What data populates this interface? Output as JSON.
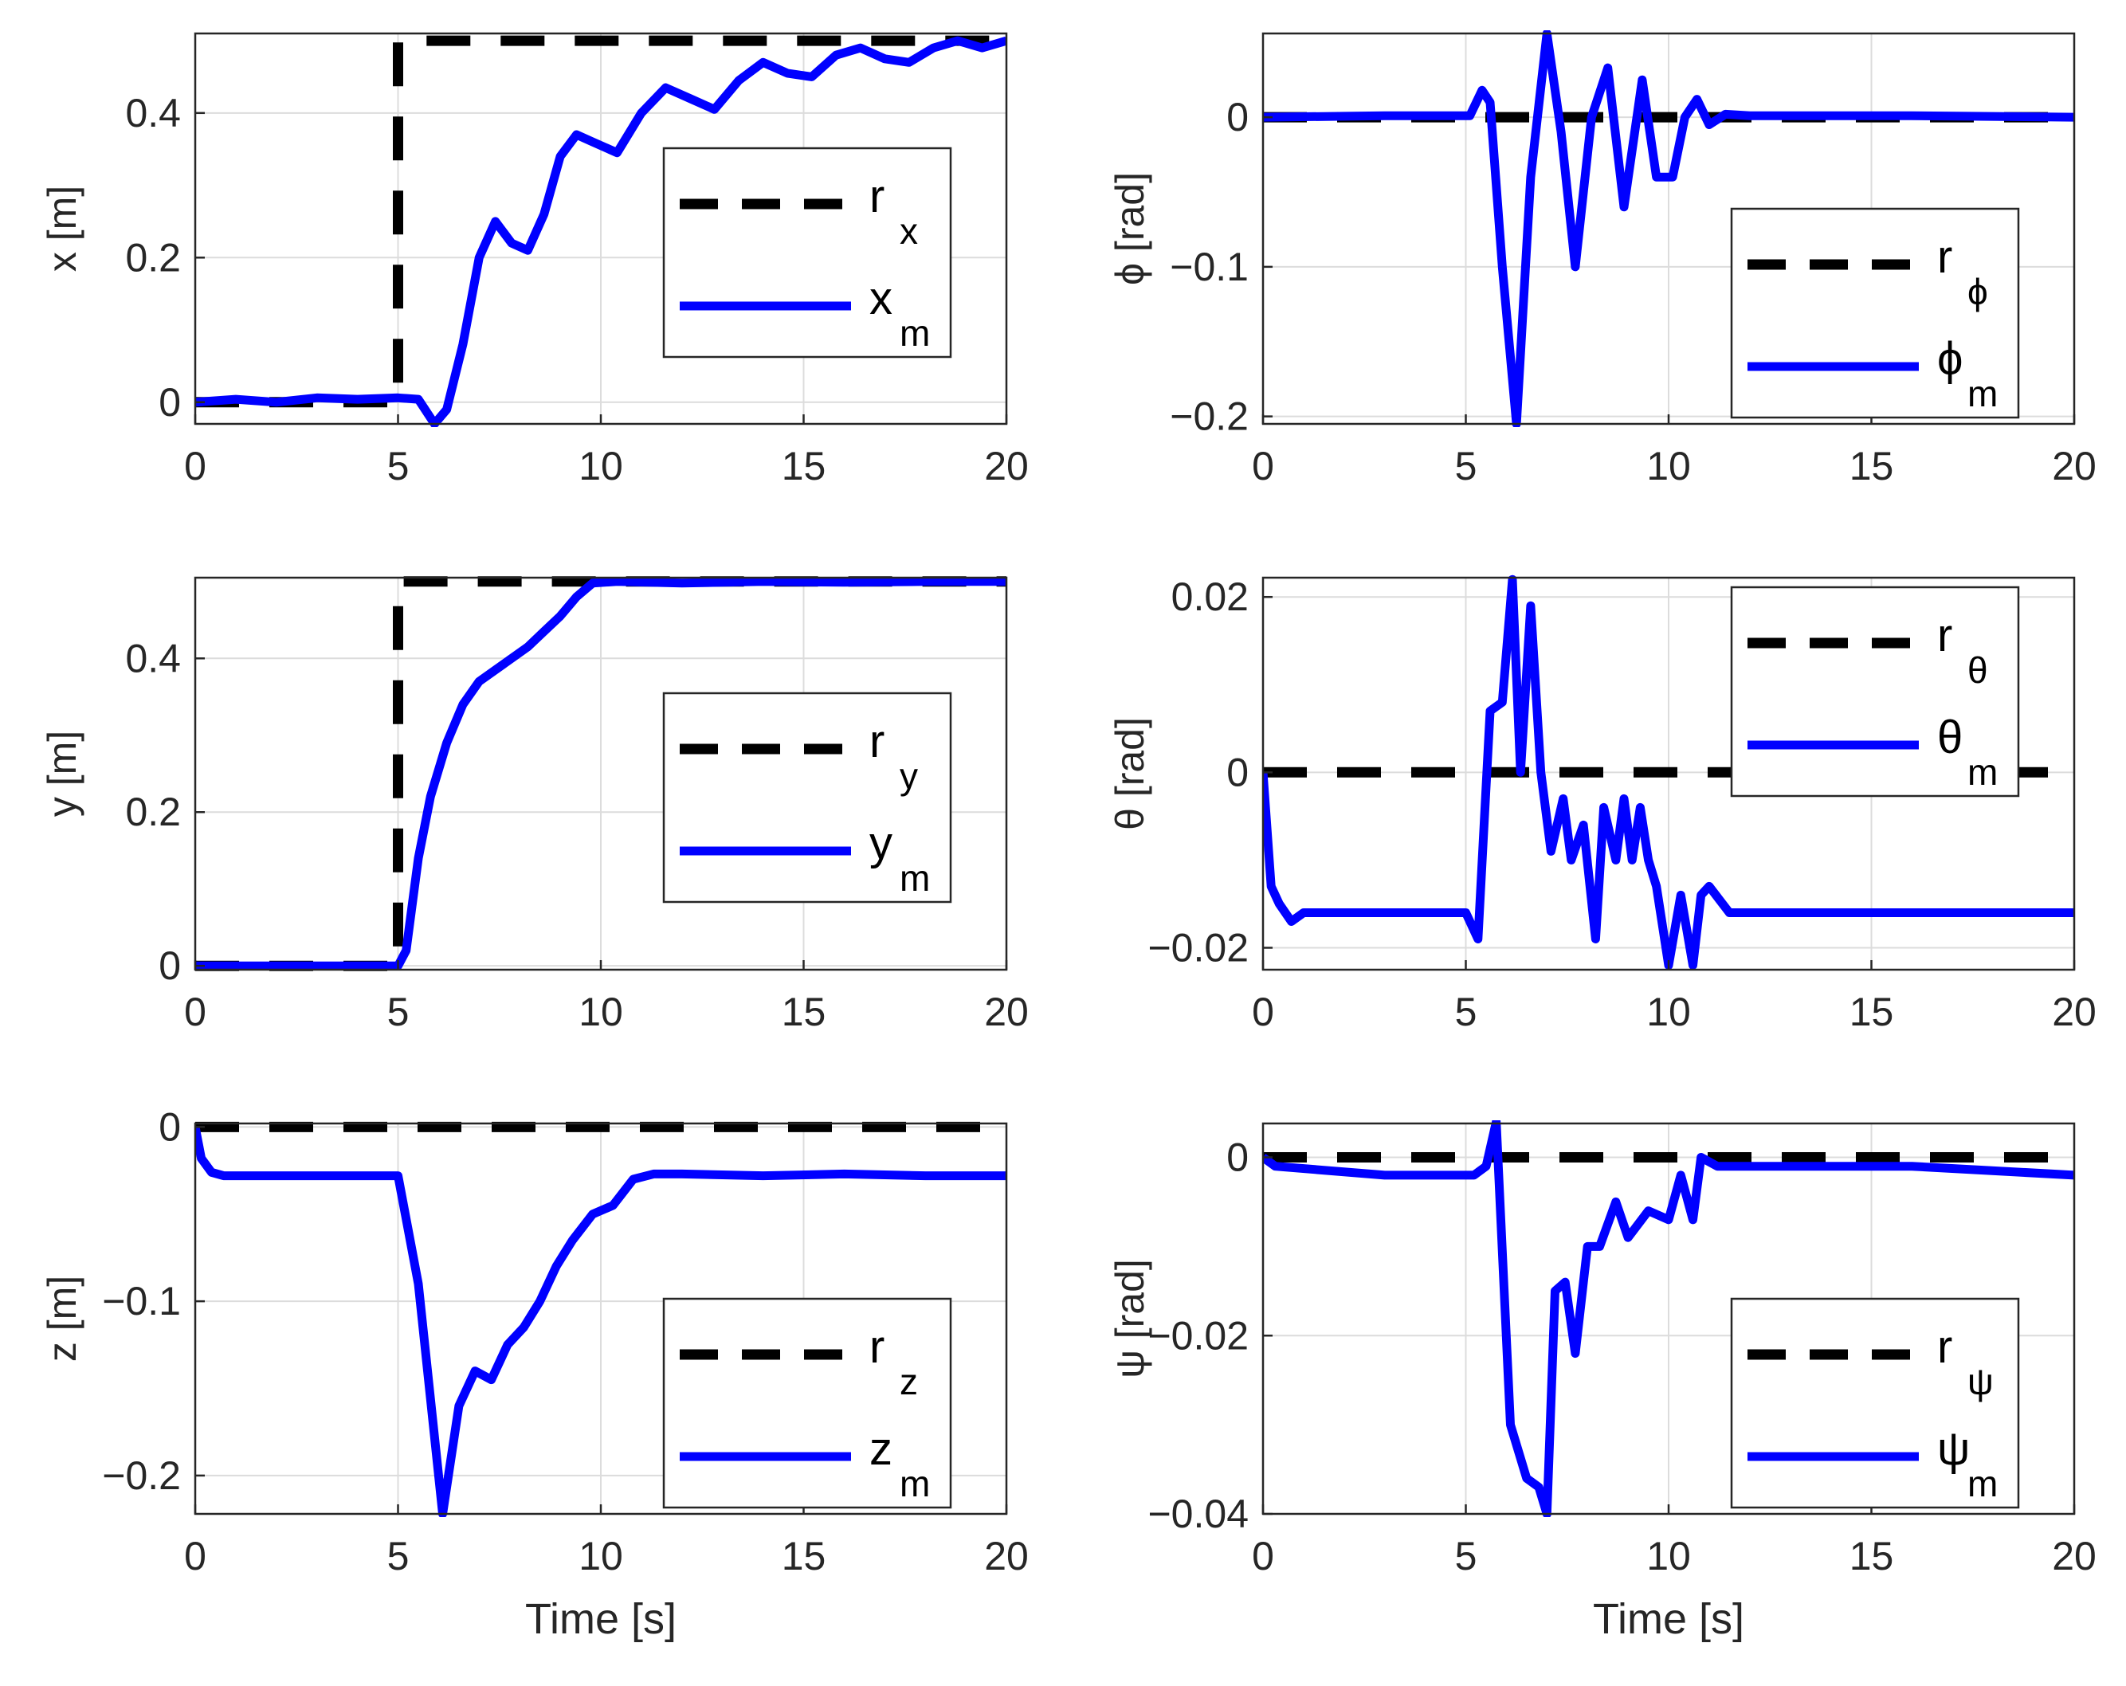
{
  "figure": {
    "colors": {
      "reference": "#000000",
      "measured": "#0000ff",
      "grid": "#dcdcdc",
      "axis": "#262626"
    }
  },
  "chart_data": [
    {
      "id": "x",
      "type": "line",
      "ylabel": "x [m]",
      "xlabel": "",
      "xlim": [
        0,
        20
      ],
      "ylim": [
        -0.03,
        0.51
      ],
      "xticks": [
        0,
        5,
        10,
        15,
        20
      ],
      "xtick_labels": [
        "0",
        "5",
        "10",
        "15",
        "20"
      ],
      "yticks": [
        0,
        0.2,
        0.4
      ],
      "ytick_labels": [
        "0",
        "0.2",
        "0.4"
      ],
      "grid": true,
      "legend_position": "right-middle",
      "legend": [
        {
          "label": "r",
          "sub": "x",
          "style": "dashed",
          "color": "#000000"
        },
        {
          "label": "x",
          "sub": "m",
          "style": "solid",
          "color": "#0000ff"
        }
      ],
      "series": [
        {
          "name": "r_x",
          "x": [
            0,
            5,
            5,
            20
          ],
          "y": [
            0,
            0,
            0.5,
            0.5
          ]
        },
        {
          "name": "x_m",
          "x": [
            0,
            1,
            2,
            3,
            4,
            5,
            5.5,
            5.9,
            6.2,
            6.6,
            7.0,
            7.4,
            7.8,
            8.2,
            8.6,
            9.0,
            9.4,
            9.8,
            10.4,
            11.0,
            11.6,
            12.2,
            12.8,
            13.4,
            14.0,
            14.6,
            15.2,
            15.8,
            16.4,
            17.0,
            17.6,
            18.2,
            18.8,
            19.4,
            20
          ],
          "y": [
            0,
            0.004,
            0,
            0.006,
            0.004,
            0.006,
            0.004,
            -0.03,
            -0.01,
            0.08,
            0.2,
            0.25,
            0.22,
            0.21,
            0.26,
            0.34,
            0.37,
            0.36,
            0.345,
            0.4,
            0.435,
            0.42,
            0.405,
            0.445,
            0.47,
            0.455,
            0.45,
            0.48,
            0.49,
            0.475,
            0.47,
            0.49,
            0.5,
            0.49,
            0.5
          ]
        }
      ]
    },
    {
      "id": "phi",
      "type": "line",
      "ylabel": "ϕ [rad]",
      "xlabel": "",
      "xlim": [
        0,
        20
      ],
      "ylim": [
        -0.205,
        0.056
      ],
      "xticks": [
        0,
        5,
        10,
        15,
        20
      ],
      "xtick_labels": [
        "0",
        "5",
        "10",
        "15",
        "20"
      ],
      "yticks": [
        -0.2,
        -0.1,
        0
      ],
      "ytick_labels": [
        "−0.2",
        "−0.1",
        "0"
      ],
      "grid": true,
      "legend_position": "right-bottom",
      "legend": [
        {
          "label": "r",
          "sub": "ϕ",
          "style": "dashed",
          "color": "#000000"
        },
        {
          "label": "ϕ",
          "sub": "m",
          "style": "solid",
          "color": "#0000ff"
        }
      ],
      "series": [
        {
          "name": "r_phi",
          "x": [
            0,
            20
          ],
          "y": [
            0,
            0
          ]
        },
        {
          "name": "phi_m",
          "x": [
            0,
            3,
            5.1,
            5.4,
            5.6,
            5.9,
            6.25,
            6.6,
            7.0,
            7.35,
            7.7,
            8.1,
            8.5,
            8.9,
            9.35,
            9.7,
            10.1,
            10.4,
            10.7,
            11.0,
            11.4,
            12,
            16,
            20
          ],
          "y": [
            0,
            0.001,
            0.001,
            0.018,
            0.01,
            -0.1,
            -0.205,
            -0.04,
            0.056,
            -0.01,
            -0.1,
            0.0,
            0.033,
            -0.06,
            0.025,
            -0.04,
            -0.04,
            0.0,
            0.012,
            -0.005,
            0.002,
            0.001,
            0.001,
            0
          ]
        }
      ]
    },
    {
      "id": "y",
      "type": "line",
      "ylabel": "y [m]",
      "xlabel": "",
      "xlim": [
        0,
        20
      ],
      "ylim": [
        -0.005,
        0.505
      ],
      "xticks": [
        0,
        5,
        10,
        15,
        20
      ],
      "xtick_labels": [
        "0",
        "5",
        "10",
        "15",
        "20"
      ],
      "yticks": [
        0,
        0.2,
        0.4
      ],
      "ytick_labels": [
        "0",
        "0.2",
        "0.4"
      ],
      "grid": true,
      "legend_position": "right-middle",
      "legend": [
        {
          "label": "r",
          "sub": "y",
          "style": "dashed",
          "color": "#000000"
        },
        {
          "label": "y",
          "sub": "m",
          "style": "solid",
          "color": "#0000ff"
        }
      ],
      "series": [
        {
          "name": "r_y",
          "x": [
            0,
            5,
            5,
            20
          ],
          "y": [
            0,
            0,
            0.5,
            0.5
          ]
        },
        {
          "name": "y_m",
          "x": [
            0,
            2,
            4,
            5.0,
            5.2,
            5.5,
            5.8,
            6.2,
            6.6,
            7.0,
            7.4,
            7.8,
            8.2,
            8.6,
            9.0,
            9.4,
            9.8,
            10.4,
            12,
            14,
            16,
            18,
            20
          ],
          "y": [
            0,
            0,
            0,
            0,
            0.02,
            0.14,
            0.22,
            0.29,
            0.34,
            0.37,
            0.385,
            0.4,
            0.415,
            0.435,
            0.455,
            0.48,
            0.498,
            0.5,
            0.498,
            0.5,
            0.499,
            0.5,
            0.5
          ]
        }
      ]
    },
    {
      "id": "theta",
      "type": "line",
      "ylabel": "θ [rad]",
      "xlabel": "",
      "xlim": [
        0,
        20
      ],
      "ylim": [
        -0.0225,
        0.0222
      ],
      "xticks": [
        0,
        5,
        10,
        15,
        20
      ],
      "xtick_labels": [
        "0",
        "5",
        "10",
        "15",
        "20"
      ],
      "yticks": [
        -0.02,
        0,
        0.02
      ],
      "ytick_labels": [
        "−0.02",
        "0",
        "0.02"
      ],
      "grid": true,
      "legend_position": "right-top",
      "legend": [
        {
          "label": "r",
          "sub": "θ",
          "style": "dashed",
          "color": "#000000"
        },
        {
          "label": "θ",
          "sub": "m",
          "style": "solid",
          "color": "#0000ff"
        }
      ],
      "series": [
        {
          "name": "r_theta",
          "x": [
            0,
            20
          ],
          "y": [
            0,
            0
          ]
        },
        {
          "name": "theta_m",
          "x": [
            0,
            0.2,
            0.4,
            0.7,
            1.0,
            3,
            5.0,
            5.3,
            5.6,
            5.9,
            6.15,
            6.35,
            6.6,
            6.85,
            7.1,
            7.4,
            7.6,
            7.9,
            8.2,
            8.4,
            8.7,
            8.9,
            9.1,
            9.3,
            9.5,
            9.7,
            10.0,
            10.3,
            10.6,
            10.8,
            11.0,
            11.5,
            12,
            16,
            20
          ],
          "y": [
            0,
            -0.013,
            -0.015,
            -0.017,
            -0.016,
            -0.016,
            -0.016,
            -0.019,
            0.007,
            0.008,
            0.022,
            0.0,
            0.019,
            0.0,
            -0.009,
            -0.003,
            -0.01,
            -0.006,
            -0.019,
            -0.004,
            -0.01,
            -0.003,
            -0.01,
            -0.004,
            -0.01,
            -0.013,
            -0.022,
            -0.014,
            -0.022,
            -0.014,
            -0.013,
            -0.016,
            -0.016,
            -0.016,
            -0.016
          ]
        }
      ]
    },
    {
      "id": "z",
      "type": "line",
      "ylabel": "z [m]",
      "xlabel": "Time [s]",
      "xlim": [
        0,
        20
      ],
      "ylim": [
        -0.222,
        0.002
      ],
      "xticks": [
        0,
        5,
        10,
        15,
        20
      ],
      "xtick_labels": [
        "0",
        "5",
        "10",
        "15",
        "20"
      ],
      "yticks": [
        -0.2,
        -0.1,
        0
      ],
      "ytick_labels": [
        "−0.2",
        "−0.1",
        "0"
      ],
      "grid": true,
      "legend_position": "right-bottom",
      "legend": [
        {
          "label": "r",
          "sub": "z",
          "style": "dashed",
          "color": "#000000"
        },
        {
          "label": "z",
          "sub": "m",
          "style": "solid",
          "color": "#0000ff"
        }
      ],
      "series": [
        {
          "name": "r_z",
          "x": [
            0,
            20
          ],
          "y": [
            0,
            0
          ]
        },
        {
          "name": "z_m",
          "x": [
            0,
            0.15,
            0.4,
            0.7,
            2,
            4,
            5.0,
            5.5,
            6.1,
            6.5,
            6.9,
            7.3,
            7.7,
            8.1,
            8.5,
            8.9,
            9.3,
            9.8,
            10.3,
            10.8,
            11.3,
            12,
            14,
            16,
            18,
            20
          ],
          "y": [
            0,
            -0.018,
            -0.026,
            -0.028,
            -0.028,
            -0.028,
            -0.028,
            -0.09,
            -0.222,
            -0.16,
            -0.14,
            -0.145,
            -0.125,
            -0.115,
            -0.1,
            -0.08,
            -0.065,
            -0.05,
            -0.045,
            -0.03,
            -0.027,
            -0.027,
            -0.028,
            -0.027,
            -0.028,
            -0.028
          ]
        }
      ]
    },
    {
      "id": "psi",
      "type": "line",
      "ylabel": "ψ [rad]",
      "xlabel": "Time [s]",
      "xlim": [
        0,
        20
      ],
      "ylim": [
        -0.04,
        0.0038
      ],
      "xticks": [
        0,
        5,
        10,
        15,
        20
      ],
      "xtick_labels": [
        "0",
        "5",
        "10",
        "15",
        "20"
      ],
      "yticks": [
        -0.04,
        -0.02,
        0
      ],
      "ytick_labels": [
        "−0.04",
        "−0.02",
        "0"
      ],
      "grid": true,
      "legend_position": "right-bottom",
      "legend": [
        {
          "label": "r",
          "sub": "ψ",
          "style": "dashed",
          "color": "#000000"
        },
        {
          "label": "ψ",
          "sub": "m",
          "style": "solid",
          "color": "#0000ff"
        }
      ],
      "series": [
        {
          "name": "r_psi",
          "x": [
            0,
            20
          ],
          "y": [
            0,
            0
          ]
        },
        {
          "name": "psi_m",
          "x": [
            0,
            0.3,
            3,
            5.2,
            5.5,
            5.75,
            6.1,
            6.5,
            6.8,
            7.0,
            7.2,
            7.45,
            7.7,
            8.0,
            8.3,
            8.7,
            9.0,
            9.5,
            10.0,
            10.3,
            10.6,
            10.8,
            11.2,
            12,
            16,
            20
          ],
          "y": [
            0,
            -0.001,
            -0.002,
            -0.002,
            -0.001,
            0.004,
            -0.03,
            -0.036,
            -0.037,
            -0.04,
            -0.015,
            -0.014,
            -0.022,
            -0.01,
            -0.01,
            -0.005,
            -0.009,
            -0.006,
            -0.007,
            -0.002,
            -0.007,
            0.0,
            -0.001,
            -0.001,
            -0.001,
            -0.002
          ]
        }
      ]
    }
  ]
}
